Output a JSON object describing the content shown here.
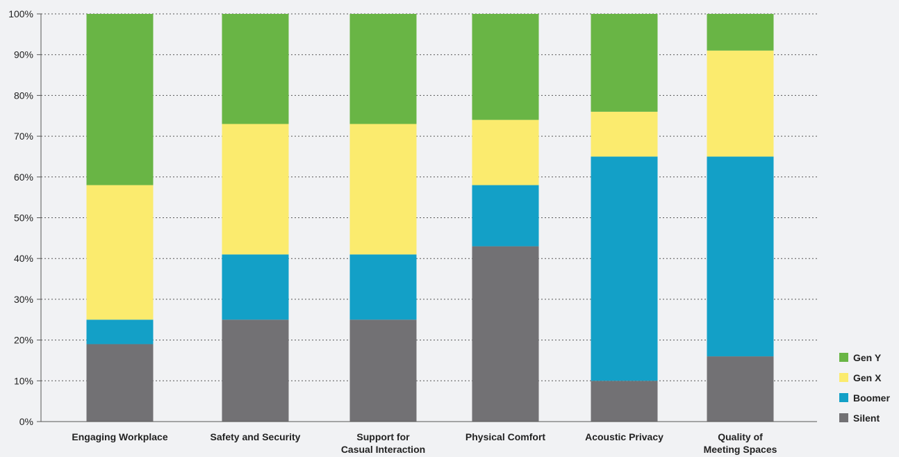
{
  "chart_data": {
    "type": "bar",
    "stacked": true,
    "title": "",
    "xlabel": "",
    "ylabel": "",
    "ylim": [
      0,
      100
    ],
    "yticks": [
      "0%",
      "10%",
      "20%",
      "30%",
      "40%",
      "50%",
      "60%",
      "70%",
      "80%",
      "90%",
      "100%"
    ],
    "grid": true,
    "legend_position": "bottom-right",
    "categories": [
      [
        "Engaging Workplace"
      ],
      [
        "Safety and Security"
      ],
      [
        "Support for",
        "Casual Interaction"
      ],
      [
        "Physical Comfort"
      ],
      [
        "Acoustic Privacy"
      ],
      [
        "Quality of",
        "Meeting Spaces"
      ]
    ],
    "series": [
      {
        "name": "Silent",
        "color": "#727174",
        "values": [
          19,
          25,
          25,
          43,
          10,
          16
        ]
      },
      {
        "name": "Boomer",
        "color": "#13a0c7",
        "values": [
          6,
          16,
          16,
          15,
          55,
          49
        ]
      },
      {
        "name": "Gen X",
        "color": "#fbeb6e",
        "values": [
          33,
          32,
          32,
          16,
          11,
          26
        ]
      },
      {
        "name": "Gen Y",
        "color": "#69b545",
        "values": [
          42,
          27,
          27,
          26,
          24,
          9
        ]
      }
    ],
    "legend_order": [
      "Gen Y",
      "Gen X",
      "Boomer",
      "Silent"
    ]
  }
}
